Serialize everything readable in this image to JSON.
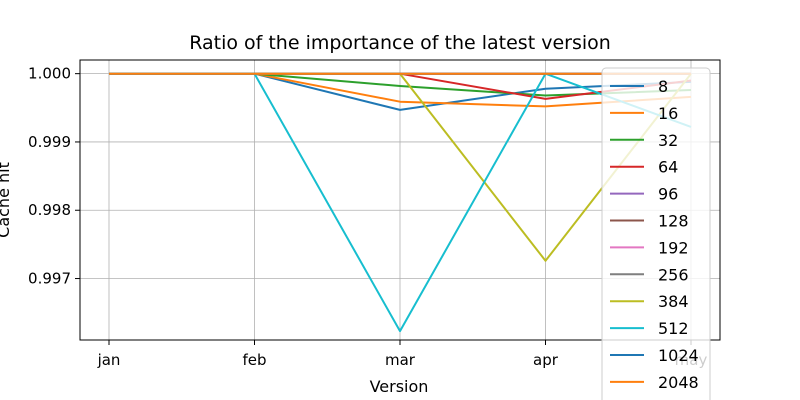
{
  "chart_data": {
    "type": "line",
    "title": "Ratio of the importance of the latest version",
    "xlabel": "Version",
    "ylabel": "Cache hit",
    "categories": [
      "jan",
      "feb",
      "mar",
      "apr",
      "may"
    ],
    "yticks": [
      "0.997",
      "0.998",
      "0.999",
      "1.000"
    ],
    "ylim": [
      0.9961,
      1.0002
    ],
    "grid": true,
    "legend_position": "right",
    "series": [
      {
        "name": "8",
        "color": "#1f77b4",
        "values": [
          1.0,
          1.0,
          0.99947,
          0.99978,
          0.99988
        ]
      },
      {
        "name": "16",
        "color": "#ff7f0e",
        "values": [
          1.0,
          1.0,
          0.99959,
          0.99952,
          0.99966
        ]
      },
      {
        "name": "32",
        "color": "#2ca02c",
        "values": [
          1.0,
          1.0,
          0.99982,
          0.99968,
          0.99976
        ]
      },
      {
        "name": "64",
        "color": "#d62728",
        "values": [
          1.0,
          1.0,
          1.0,
          0.99963,
          0.9999
        ]
      },
      {
        "name": "96",
        "color": "#9467bd",
        "values": [
          1.0,
          1.0,
          1.0,
          1.0,
          1.0
        ]
      },
      {
        "name": "128",
        "color": "#8c564b",
        "values": [
          1.0,
          1.0,
          1.0,
          1.0,
          1.0
        ]
      },
      {
        "name": "192",
        "color": "#e377c2",
        "values": [
          1.0,
          1.0,
          1.0,
          1.0,
          1.0
        ]
      },
      {
        "name": "256",
        "color": "#7f7f7f",
        "values": [
          1.0,
          1.0,
          1.0,
          1.0,
          1.0
        ]
      },
      {
        "name": "384",
        "color": "#bcbd22",
        "values": [
          1.0,
          1.0,
          1.0,
          0.99726,
          1.0
        ]
      },
      {
        "name": "512",
        "color": "#17becf",
        "values": [
          1.0,
          1.0,
          0.99623,
          1.0,
          0.99922
        ]
      },
      {
        "name": "1024",
        "color": "#1f77b4",
        "values": [
          1.0,
          1.0,
          1.0,
          1.0,
          1.0
        ]
      },
      {
        "name": "2048",
        "color": "#ff7f0e",
        "values": [
          1.0,
          1.0,
          1.0,
          1.0,
          1.0
        ]
      }
    ]
  }
}
